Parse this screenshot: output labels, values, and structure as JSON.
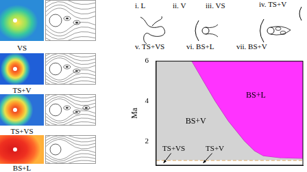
{
  "panels": [
    {
      "label": "VS"
    },
    {
      "label": "TS+V"
    },
    {
      "label": "TS+VS"
    },
    {
      "label": "BS+L"
    }
  ],
  "schematics": [
    "i. L",
    "ii. V",
    "iii. VS",
    "iv. TS+V",
    "v. TS+VS",
    "vi. BS+L",
    "vii. BS+V"
  ],
  "chart_data": {
    "type": "area",
    "y_label": "Ma",
    "xlim": [
      0,
      1
    ],
    "ylim": [
      0.8,
      6
    ],
    "yticks": [
      2,
      4,
      6
    ],
    "tick_labels": "y",
    "grid": false,
    "boundary": {
      "x": [
        0.24,
        0.32,
        0.4,
        0.49,
        0.6,
        0.67,
        0.73,
        0.85,
        1
      ],
      "y": [
        6,
        5,
        4,
        3,
        2,
        1.5,
        1.25,
        1.15,
        1.12
      ],
      "color": "#c33cc3"
    },
    "transition": {
      "y": 1.05,
      "color": "#e09a3a",
      "line_style": "dashed"
    },
    "regions": [
      {
        "label": "BS+V",
        "color": "#d3d3d3",
        "x": 0.27,
        "y": 3
      },
      {
        "label": "BS+L",
        "color": "#ff33ff",
        "x": 0.68,
        "y": 4.3
      }
    ],
    "annotations": [
      {
        "text": "TS+VS",
        "x": 0.12,
        "y": 1.6,
        "arrow_to": [
          0.05,
          0.9
        ]
      },
      {
        "text": "TS+V",
        "x": 0.4,
        "y": 1.6,
        "arrow_to": [
          0.32,
          0.9
        ]
      }
    ]
  }
}
